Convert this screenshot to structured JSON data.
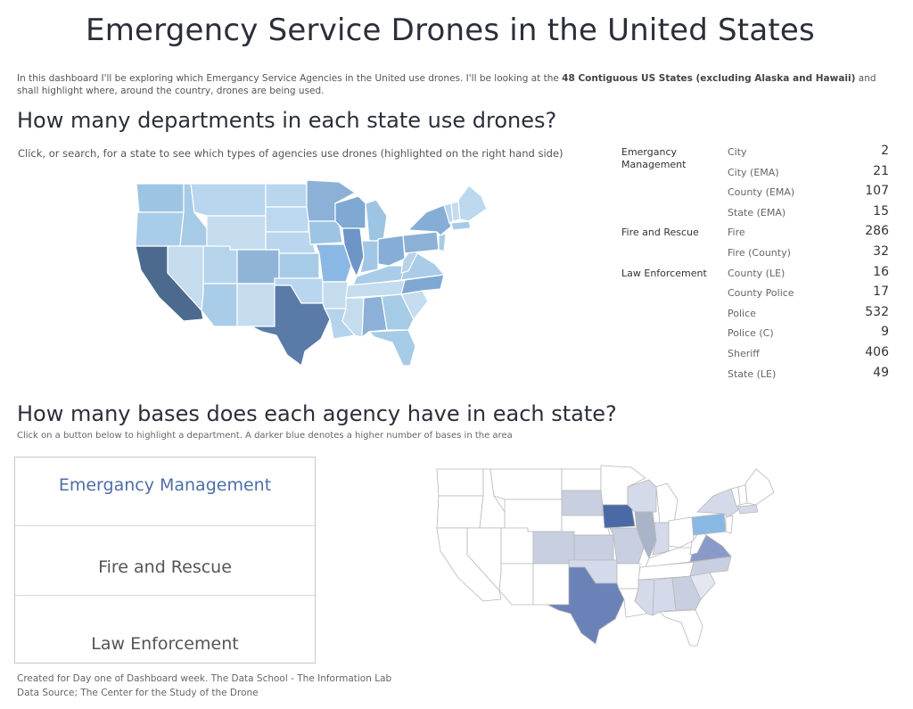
{
  "title": "Emergency Service Drones in the United States",
  "intro": {
    "part1": "In this dashboard I'll be exploring which Emergancy Service Agencies in the United use drones. I'll be looking at the ",
    "bold": "48 Contiguous US States (excluding Alaska and Hawaii)",
    "part2": " and shall highlight where, around the country, drones are being used."
  },
  "section1": {
    "heading": "How many departments in each state use drones?",
    "subtitle": "Click, or search, for a state to see which types of agencies use drones (highlighted on the right hand side)"
  },
  "agency_table": [
    {
      "group": "Emergancy Management",
      "type": "City",
      "count": "2"
    },
    {
      "group": "",
      "type": "City (EMA)",
      "count": "21"
    },
    {
      "group": "",
      "type": "County (EMA)",
      "count": "107"
    },
    {
      "group": "",
      "type": "State (EMA)",
      "count": "15"
    },
    {
      "group": "Fire and Rescue",
      "type": "Fire",
      "count": "286"
    },
    {
      "group": "",
      "type": "Fire (County)",
      "count": "32"
    },
    {
      "group": "Law Enforcement",
      "type": "County (LE)",
      "count": "16"
    },
    {
      "group": "",
      "type": "County Police",
      "count": "17"
    },
    {
      "group": "",
      "type": "Police",
      "count": "532"
    },
    {
      "group": "",
      "type": "Police (C)",
      "count": "9"
    },
    {
      "group": "",
      "type": "Sheriff",
      "count": "406"
    },
    {
      "group": "",
      "type": "State (LE)",
      "count": "49"
    }
  ],
  "section2": {
    "heading": "How many bases does each agency have in each state?",
    "subtitle": "Click on a button below to highlight a department. A darker blue denotes a higher number of bases in the area"
  },
  "buttons": {
    "ema": "Emergancy Management",
    "fire": "Fire and Rescue",
    "law": "Law Enforcement"
  },
  "footer": {
    "line1": "Created for Day one of Dashboard week. The Data School - The Information Lab",
    "line2": "Data Source; The Center for the Study of the Drone"
  },
  "colors": {
    "map_dark": "#4c6a8e",
    "map_light": "#c4dcee",
    "map2_highlight": "#4a69a6",
    "button_active": "#4e6ea7"
  }
}
